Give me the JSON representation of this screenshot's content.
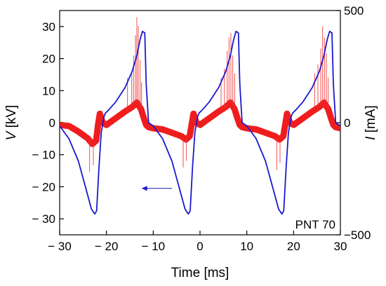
{
  "chart_data": {
    "type": "line",
    "xlabel": "Time [ms]",
    "ylabel_left": "V [kV]",
    "ylabel_left_symbol": "V",
    "ylabel_left_unit": " [kV]",
    "ylabel_right": "I [mA]",
    "ylabel_right_symbol": "I",
    "ylabel_right_unit": " [mA]",
    "annotation": "PNT 70",
    "xlim": [
      -30,
      30
    ],
    "ylim_left": [
      -35,
      35
    ],
    "ylim_right": [
      -500,
      500
    ],
    "x_ticks": [
      -30,
      -20,
      -10,
      0,
      10,
      20,
      30
    ],
    "x_tick_labels": [
      "− 30",
      "− 20",
      "− 10",
      "0",
      "10",
      "20",
      "30"
    ],
    "y_left_ticks": [
      -30,
      -20,
      -10,
      0,
      10,
      20,
      30
    ],
    "y_left_tick_labels": [
      "− 30",
      "− 20",
      "− 10",
      "0",
      "10",
      "20",
      "30"
    ],
    "y_right_ticks": [
      -500,
      0,
      500
    ],
    "y_right_tick_labels": [
      "−500",
      "0",
      "500"
    ],
    "grid": false,
    "arrow": {
      "from": [
        -6,
        -20.5
      ],
      "to": [
        -12.5,
        -20.5
      ],
      "color": "#1a1acd"
    },
    "series": [
      {
        "axis": "left",
        "color": "#1a1acd",
        "x": [
          -30,
          -28,
          -26,
          -24.5,
          -23.2,
          -22.5,
          -22.1,
          -21.6,
          -21.1,
          -20.5,
          -20.2,
          -19.5,
          -18,
          -16,
          -14.5,
          -13.5,
          -12.8,
          -12.3,
          -11.8,
          -11.5,
          -11,
          -10,
          -8,
          -6,
          -4.5,
          -3.2,
          -2.5,
          -2.1,
          -1.6,
          -1.1,
          -0.5,
          -0.2,
          0.5,
          2,
          4,
          5.5,
          6.5,
          7.2,
          7.7,
          8.2,
          8.5,
          9,
          10,
          12,
          14,
          15.5,
          16.8,
          17.5,
          17.9,
          18.4,
          18.9,
          19.5,
          19.8,
          20.5,
          22,
          24,
          25.5,
          26.5,
          27.2,
          27.7,
          28.2,
          28.5,
          29,
          30
        ],
        "y": [
          -1,
          -5,
          -12,
          -20,
          -27,
          -28.5,
          -27.5,
          -14,
          -3,
          2,
          3,
          4,
          6.5,
          11,
          16,
          21,
          26,
          28.5,
          28,
          12,
          0,
          -1,
          -5,
          -12,
          -20,
          -27,
          -28.5,
          -27.5,
          -14,
          -3,
          2,
          3,
          4,
          6.5,
          11,
          16,
          21,
          26,
          28.5,
          28,
          12,
          0,
          -1,
          -5,
          -12,
          -20,
          -27,
          -28.5,
          -27.5,
          -14,
          -3,
          2,
          3,
          4,
          6.5,
          11,
          16,
          21,
          26,
          28.5,
          28,
          12,
          0,
          -1
        ]
      },
      {
        "axis": "right",
        "color": "#ee1111",
        "x": [
          -30,
          -28,
          -26,
          -24,
          -23,
          -22.2,
          -21.8,
          -21.4,
          -20.8,
          -20,
          -18,
          -16,
          -14.5,
          -13.5,
          -12.6,
          -12,
          -11.5,
          -11,
          -10,
          -8,
          -6,
          -4,
          -3,
          -2.2,
          -1.8,
          -1.4,
          -0.8,
          0,
          2,
          4,
          5.5,
          6.5,
          7.4,
          8,
          8.5,
          9,
          10,
          12,
          14,
          16,
          17,
          17.8,
          18.2,
          18.6,
          19.2,
          20,
          22,
          24,
          25.5,
          26.5,
          27.4,
          28,
          28.5,
          29,
          30
        ],
        "y": [
          -10,
          -15,
          -40,
          -70,
          -95,
          -80,
          -10,
          40,
          0,
          -10,
          20,
          50,
          70,
          90,
          60,
          20,
          -10,
          -20,
          -25,
          -30,
          -45,
          -60,
          -75,
          -60,
          -10,
          40,
          0,
          -10,
          20,
          50,
          70,
          90,
          60,
          20,
          -10,
          -20,
          -25,
          -30,
          -45,
          -60,
          -75,
          -60,
          -10,
          40,
          0,
          -10,
          20,
          50,
          70,
          90,
          60,
          20,
          -10,
          -20,
          -25
        ]
      }
    ],
    "current_spikes": [
      {
        "x": -15.5,
        "y": 200
      },
      {
        "x": -14.6,
        "y": 230
      },
      {
        "x": -14.2,
        "y": 300
      },
      {
        "x": -13.8,
        "y": 390
      },
      {
        "x": -13.5,
        "y": 470
      },
      {
        "x": -13.2,
        "y": 430
      },
      {
        "x": -12.8,
        "y": 280
      },
      {
        "x": -12.5,
        "y": 180
      },
      {
        "x": -23.6,
        "y": -220
      },
      {
        "x": -22.8,
        "y": -190
      },
      {
        "x": 4.5,
        "y": 200
      },
      {
        "x": 5.2,
        "y": 240
      },
      {
        "x": 5.8,
        "y": 320
      },
      {
        "x": 6.2,
        "y": 380
      },
      {
        "x": 6.6,
        "y": 400
      },
      {
        "x": 7.0,
        "y": 300
      },
      {
        "x": 7.4,
        "y": 220
      },
      {
        "x": -3.6,
        "y": -200
      },
      {
        "x": -2.9,
        "y": -170
      },
      {
        "x": 24.5,
        "y": 220
      },
      {
        "x": 25.2,
        "y": 260
      },
      {
        "x": 25.8,
        "y": 330
      },
      {
        "x": 26.2,
        "y": 430
      },
      {
        "x": 26.6,
        "y": 380
      },
      {
        "x": 27.0,
        "y": 310
      },
      {
        "x": 27.4,
        "y": 200
      },
      {
        "x": 16.4,
        "y": -210
      },
      {
        "x": 17.1,
        "y": -180
      }
    ]
  }
}
